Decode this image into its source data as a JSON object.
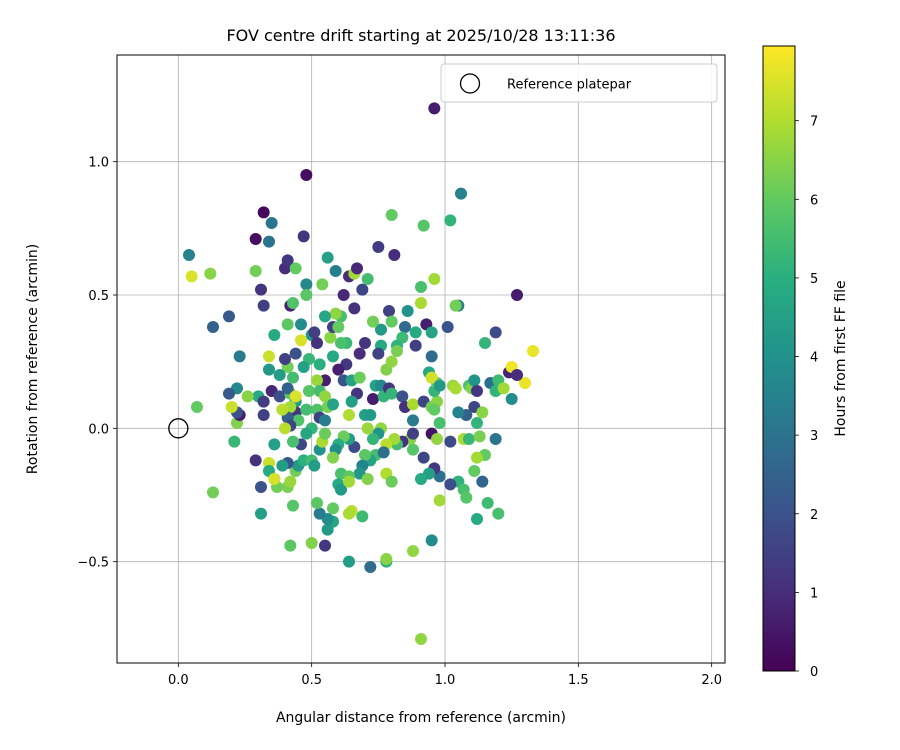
{
  "chart_data": {
    "type": "scatter",
    "title": "FOV centre drift starting at 2025/10/28 13:11:36",
    "xlabel": "Angular distance from reference (arcmin)",
    "ylabel": "Rotation from reference (arcmin)",
    "xlim": [
      -0.23,
      2.05
    ],
    "ylim": [
      -0.88,
      1.4
    ],
    "x_ticks": [
      0.0,
      0.5,
      1.0,
      1.5,
      2.0
    ],
    "x_tick_labels": [
      "0.0",
      "0.5",
      "1.0",
      "1.5",
      "2.0"
    ],
    "y_ticks": [
      -0.5,
      0.0,
      0.5,
      1.0
    ],
    "y_tick_labels": [
      "−0.5",
      "0.0",
      "0.5",
      "1.0"
    ],
    "grid": true,
    "legend": {
      "location": "top-right",
      "entries": [
        {
          "label": "Reference platepar",
          "marker": "open-circle"
        }
      ]
    },
    "reference_point": {
      "x": 0.0,
      "y": 0.0
    },
    "colorbar": {
      "label": "Hours from first FF file",
      "min": 0,
      "max": 7.95,
      "ticks": [
        0,
        1,
        2,
        3,
        4,
        5,
        6,
        7
      ],
      "tick_labels": [
        "0",
        "1",
        "2",
        "3",
        "4",
        "5",
        "6",
        "7"
      ],
      "colormap": "viridis"
    },
    "points": [
      [
        0.48,
        0.95,
        0.3
      ],
      [
        0.96,
        1.2,
        0.6
      ],
      [
        0.32,
        0.81,
        0.2
      ],
      [
        0.29,
        0.71,
        0.3
      ],
      [
        0.47,
        0.72,
        1.2
      ],
      [
        0.34,
        0.7,
        3.0
      ],
      [
        0.35,
        0.77,
        3.1
      ],
      [
        0.4,
        0.6,
        1.0
      ],
      [
        0.41,
        0.63,
        1.3
      ],
      [
        0.31,
        0.52,
        1.2
      ],
      [
        0.32,
        0.46,
        1.5
      ],
      [
        0.19,
        0.42,
        2.2
      ],
      [
        0.13,
        0.38,
        2.5
      ],
      [
        0.04,
        0.65,
        3.5
      ],
      [
        0.05,
        0.57,
        7.5
      ],
      [
        0.12,
        0.58,
        6.5
      ],
      [
        0.29,
        0.59,
        6.2
      ],
      [
        0.44,
        0.6,
        6.0
      ],
      [
        0.42,
        0.46,
        0.8
      ],
      [
        0.46,
        0.39,
        3.8
      ],
      [
        0.43,
        0.47,
        5.7
      ],
      [
        0.36,
        0.35,
        4.8
      ],
      [
        0.41,
        0.39,
        5.9
      ],
      [
        0.5,
        0.35,
        4.3
      ],
      [
        0.57,
        0.34,
        6.5
      ],
      [
        0.58,
        0.38,
        1.5
      ],
      [
        0.61,
        0.42,
        5.6
      ],
      [
        0.62,
        0.5,
        0.9
      ],
      [
        0.64,
        0.57,
        1.0
      ],
      [
        0.66,
        0.58,
        6.8
      ],
      [
        0.67,
        0.6,
        0.9
      ],
      [
        0.69,
        0.52,
        1.7
      ],
      [
        0.71,
        0.56,
        5.5
      ],
      [
        0.66,
        0.45,
        1.1
      ],
      [
        0.63,
        0.32,
        5.3
      ],
      [
        0.6,
        0.38,
        6.0
      ],
      [
        0.59,
        0.43,
        6.6
      ],
      [
        0.55,
        0.42,
        4.7
      ],
      [
        0.48,
        0.54,
        3.7
      ],
      [
        0.48,
        0.5,
        5.9
      ],
      [
        0.54,
        0.54,
        6.2
      ],
      [
        0.59,
        0.59,
        3.4
      ],
      [
        0.56,
        0.64,
        4.5
      ],
      [
        0.75,
        0.68,
        1.4
      ],
      [
        0.81,
        0.65,
        1.0
      ],
      [
        0.8,
        0.8,
        6.0
      ],
      [
        0.92,
        0.76,
        5.8
      ],
      [
        1.02,
        0.78,
        5.2
      ],
      [
        1.06,
        0.88,
        3.5
      ],
      [
        0.91,
        0.53,
        5.6
      ],
      [
        0.96,
        0.56,
        6.8
      ],
      [
        0.91,
        0.47,
        6.9
      ],
      [
        1.05,
        0.46,
        3.3
      ],
      [
        1.04,
        0.46,
        6.2
      ],
      [
        1.27,
        0.5,
        0.6
      ],
      [
        0.79,
        0.44,
        1.5
      ],
      [
        0.8,
        0.4,
        6.0
      ],
      [
        0.86,
        0.44,
        4.0
      ],
      [
        0.85,
        0.38,
        2.8
      ],
      [
        0.84,
        0.34,
        5.4
      ],
      [
        0.89,
        0.36,
        4.8
      ],
      [
        0.93,
        0.39,
        0.7
      ],
      [
        0.95,
        0.36,
        4.6
      ],
      [
        1.01,
        0.38,
        2.0
      ],
      [
        1.19,
        0.36,
        1.8
      ],
      [
        1.15,
        0.32,
        5.2
      ],
      [
        0.95,
        0.27,
        2.8
      ],
      [
        0.89,
        0.31,
        1.5
      ],
      [
        0.82,
        0.31,
        5.1
      ],
      [
        0.76,
        0.31,
        4.8
      ],
      [
        0.75,
        0.28,
        1.6
      ],
      [
        0.76,
        0.37,
        4.3
      ],
      [
        0.73,
        0.4,
        6.2
      ],
      [
        0.7,
        0.32,
        1.2
      ],
      [
        0.68,
        0.28,
        1.0
      ],
      [
        0.63,
        0.24,
        1.3
      ],
      [
        0.61,
        0.32,
        5.6
      ],
      [
        0.6,
        0.22,
        0.7
      ],
      [
        0.58,
        0.27,
        4.8
      ],
      [
        0.55,
        0.18,
        0.7
      ],
      [
        0.53,
        0.24,
        5.0
      ],
      [
        0.52,
        0.32,
        1.1
      ],
      [
        0.51,
        0.36,
        1.5
      ],
      [
        0.49,
        0.26,
        5.3
      ],
      [
        0.47,
        0.23,
        4.5
      ],
      [
        0.46,
        0.33,
        7.5
      ],
      [
        0.44,
        0.28,
        2.0
      ],
      [
        0.41,
        0.23,
        6.2
      ],
      [
        0.4,
        0.26,
        1.5
      ],
      [
        0.34,
        0.27,
        7.3
      ],
      [
        0.34,
        0.22,
        4.2
      ],
      [
        0.38,
        0.2,
        4.4
      ],
      [
        0.43,
        0.19,
        5.5
      ],
      [
        0.35,
        0.14,
        0.9
      ],
      [
        0.3,
        0.12,
        4.8
      ],
      [
        0.32,
        0.1,
        1.4
      ],
      [
        0.38,
        0.12,
        1.9
      ],
      [
        0.42,
        0.13,
        5.9
      ],
      [
        0.41,
        0.15,
        2.5
      ],
      [
        0.44,
        0.1,
        4.4
      ],
      [
        0.44,
        0.06,
        1.2
      ],
      [
        0.48,
        0.07,
        5.5
      ],
      [
        0.45,
        0.03,
        5.7
      ],
      [
        0.42,
        0.08,
        6.8
      ],
      [
        0.41,
        0.04,
        2.4
      ],
      [
        0.42,
        0.01,
        1.7
      ],
      [
        0.44,
        0.12,
        7.5
      ],
      [
        0.49,
        0.14,
        5.8
      ],
      [
        0.52,
        0.18,
        6.7
      ],
      [
        0.53,
        0.14,
        5.5
      ],
      [
        0.55,
        0.12,
        6.6
      ],
      [
        0.56,
        0.08,
        6.3
      ],
      [
        0.52,
        0.07,
        5.7
      ],
      [
        0.53,
        0.04,
        1.5
      ],
      [
        0.55,
        0.03,
        3.4
      ],
      [
        0.58,
        0.09,
        4.6
      ],
      [
        0.62,
        0.18,
        2.1
      ],
      [
        0.65,
        0.18,
        4.6
      ],
      [
        0.68,
        0.19,
        6.1
      ],
      [
        0.67,
        0.13,
        1.2
      ],
      [
        0.65,
        0.1,
        4.5
      ],
      [
        0.64,
        0.05,
        7.0
      ],
      [
        0.7,
        0.05,
        4.5
      ],
      [
        0.71,
        0.0,
        6.7
      ],
      [
        0.73,
        0.11,
        0.6
      ],
      [
        0.74,
        0.16,
        4.6
      ],
      [
        0.76,
        0.16,
        3.7
      ],
      [
        0.77,
        0.12,
        5.2
      ],
      [
        0.78,
        0.22,
        6.4
      ],
      [
        0.8,
        0.25,
        6.6
      ],
      [
        0.82,
        0.29,
        6.3
      ],
      [
        0.79,
        0.15,
        1.2
      ],
      [
        0.8,
        0.13,
        5.2
      ],
      [
        0.84,
        0.12,
        2.0
      ],
      [
        0.85,
        0.08,
        1.1
      ],
      [
        0.88,
        0.09,
        6.9
      ],
      [
        0.92,
        0.1,
        1.6
      ],
      [
        0.95,
        0.08,
        6.2
      ],
      [
        0.97,
        0.1,
        6.5
      ],
      [
        0.96,
        0.14,
        5.2
      ],
      [
        0.97,
        0.17,
        5.9
      ],
      [
        0.94,
        0.21,
        4.7
      ],
      [
        0.95,
        0.19,
        7.4
      ],
      [
        0.98,
        0.16,
        4.3
      ],
      [
        1.03,
        0.16,
        6.7
      ],
      [
        1.04,
        0.15,
        6.9
      ],
      [
        1.09,
        0.16,
        5.7
      ],
      [
        1.1,
        0.15,
        6.4
      ],
      [
        1.11,
        0.18,
        4.1
      ],
      [
        1.12,
        0.14,
        1.3
      ],
      [
        1.17,
        0.17,
        2.9
      ],
      [
        1.2,
        0.18,
        5.4
      ],
      [
        1.19,
        0.14,
        5.2
      ],
      [
        1.22,
        0.15,
        6.8
      ],
      [
        1.24,
        0.21,
        0.8
      ],
      [
        1.25,
        0.23,
        7.8
      ],
      [
        1.3,
        0.17,
        7.7
      ],
      [
        1.33,
        0.29,
        7.7
      ],
      [
        1.25,
        0.11,
        3.8
      ],
      [
        1.11,
        0.08,
        1.7
      ],
      [
        1.14,
        0.06,
        6.5
      ],
      [
        1.12,
        0.02,
        5.2
      ],
      [
        1.08,
        0.05,
        2.5
      ],
      [
        1.05,
        0.06,
        3.5
      ],
      [
        0.98,
        0.02,
        5.6
      ],
      [
        0.96,
        0.07,
        6.0
      ],
      [
        0.95,
        -0.02,
        0.4
      ],
      [
        0.97,
        -0.04,
        6.6
      ],
      [
        1.02,
        -0.05,
        1.8
      ],
      [
        1.07,
        -0.04,
        6.9
      ],
      [
        1.09,
        -0.04,
        5.3
      ],
      [
        1.13,
        -0.03,
        6.3
      ],
      [
        1.19,
        -0.04,
        3.1
      ],
      [
        1.15,
        -0.1,
        6.0
      ],
      [
        1.12,
        -0.11,
        6.8
      ],
      [
        1.11,
        -0.16,
        6.0
      ],
      [
        1.14,
        -0.2,
        2.6
      ],
      [
        1.05,
        -0.2,
        5.1
      ],
      [
        1.07,
        -0.23,
        5.6
      ],
      [
        1.02,
        -0.21,
        1.9
      ],
      [
        0.98,
        -0.18,
        2.9
      ],
      [
        0.96,
        -0.15,
        1.3
      ],
      [
        0.94,
        -0.17,
        4.5
      ],
      [
        0.92,
        -0.11,
        1.7
      ],
      [
        0.91,
        -0.19,
        4.8
      ],
      [
        0.88,
        -0.08,
        5.8
      ],
      [
        0.87,
        -0.04,
        6.4
      ],
      [
        0.88,
        -0.02,
        1.5
      ],
      [
        0.88,
        0.03,
        3.3
      ],
      [
        0.84,
        -0.05,
        1.2
      ],
      [
        0.82,
        -0.06,
        5.5
      ],
      [
        0.81,
        -0.04,
        6.8
      ],
      [
        0.78,
        -0.06,
        7.1
      ],
      [
        0.76,
        0.0,
        6.6
      ],
      [
        0.75,
        -0.02,
        4.1
      ],
      [
        0.72,
        0.05,
        4.3
      ],
      [
        0.73,
        -0.04,
        5.2
      ],
      [
        0.74,
        -0.1,
        5.5
      ],
      [
        0.72,
        -0.12,
        4.6
      ],
      [
        0.7,
        -0.1,
        5.9
      ],
      [
        0.69,
        -0.14,
        3.6
      ],
      [
        0.68,
        -0.17,
        4.2
      ],
      [
        0.71,
        -0.19,
        6.4
      ],
      [
        0.77,
        -0.09,
        2.9
      ],
      [
        0.78,
        -0.17,
        7.0
      ],
      [
        0.8,
        -0.2,
        6.1
      ],
      [
        0.66,
        -0.07,
        1.8
      ],
      [
        0.64,
        -0.04,
        4.4
      ],
      [
        0.62,
        -0.03,
        6.1
      ],
      [
        0.6,
        -0.06,
        4.9
      ],
      [
        0.59,
        -0.08,
        3.9
      ],
      [
        0.58,
        -0.11,
        6.4
      ],
      [
        0.61,
        -0.17,
        5.6
      ],
      [
        0.6,
        -0.21,
        4.8
      ],
      [
        0.61,
        -0.23,
        4.3
      ],
      [
        0.64,
        -0.18,
        5.9
      ],
      [
        0.64,
        -0.2,
        6.8
      ],
      [
        0.58,
        -0.3,
        6.0
      ],
      [
        0.58,
        -0.35,
        4.7
      ],
      [
        0.56,
        -0.38,
        4.3
      ],
      [
        0.56,
        -0.34,
        3.8
      ],
      [
        0.55,
        -0.44,
        1.3
      ],
      [
        0.5,
        -0.43,
        6.4
      ],
      [
        0.42,
        -0.44,
        5.9
      ],
      [
        0.43,
        -0.29,
        5.8
      ],
      [
        0.41,
        -0.22,
        6.3
      ],
      [
        0.42,
        -0.2,
        6.7
      ],
      [
        0.44,
        -0.16,
        6.2
      ],
      [
        0.45,
        -0.14,
        4.3
      ],
      [
        0.47,
        -0.12,
        5.0
      ],
      [
        0.5,
        -0.12,
        5.5
      ],
      [
        0.51,
        -0.14,
        4.4
      ],
      [
        0.53,
        -0.08,
        4.0
      ],
      [
        0.54,
        -0.05,
        6.9
      ],
      [
        0.55,
        -0.02,
        6.1
      ],
      [
        0.5,
        0.0,
        5.2
      ],
      [
        0.48,
        -0.02,
        4.7
      ],
      [
        0.46,
        -0.06,
        1.7
      ],
      [
        0.43,
        -0.05,
        5.6
      ],
      [
        0.41,
        -0.13,
        2.1
      ],
      [
        0.39,
        -0.14,
        4.4
      ],
      [
        0.36,
        -0.06,
        4.5
      ],
      [
        0.34,
        -0.13,
        7.3
      ],
      [
        0.34,
        -0.16,
        4.8
      ],
      [
        0.36,
        -0.19,
        5.8
      ],
      [
        0.37,
        -0.22,
        6.2
      ],
      [
        0.36,
        -0.19,
        7.5
      ],
      [
        0.31,
        -0.22,
        2.0
      ],
      [
        0.29,
        -0.12,
        1.1
      ],
      [
        0.31,
        -0.32,
        4.5
      ],
      [
        0.21,
        -0.05,
        5.3
      ],
      [
        0.22,
        0.02,
        6.4
      ],
      [
        0.23,
        0.05,
        0.7
      ],
      [
        0.22,
        0.06,
        2.0
      ],
      [
        0.2,
        0.08,
        7.3
      ],
      [
        0.26,
        0.12,
        6.5
      ],
      [
        0.22,
        0.15,
        3.7
      ],
      [
        0.19,
        0.13,
        2.2
      ],
      [
        0.23,
        0.27,
        3.3
      ],
      [
        0.32,
        0.05,
        1.5
      ],
      [
        0.39,
        0.07,
        7.1
      ],
      [
        0.4,
        0.0,
        7.1
      ],
      [
        0.07,
        0.08,
        6.0
      ],
      [
        0.13,
        -0.24,
        6.2
      ],
      [
        0.53,
        -0.32,
        3.3
      ],
      [
        0.52,
        -0.28,
        5.9
      ],
      [
        0.65,
        -0.31,
        7.1
      ],
      [
        0.64,
        -0.32,
        6.9
      ],
      [
        0.69,
        -0.33,
        5.4
      ],
      [
        0.64,
        -0.5,
        4.4
      ],
      [
        0.72,
        -0.52,
        2.8
      ],
      [
        0.78,
        -0.5,
        5.1
      ],
      [
        0.78,
        -0.49,
        6.5
      ],
      [
        0.88,
        -0.46,
        6.6
      ],
      [
        0.95,
        -0.42,
        3.8
      ],
      [
        0.91,
        -0.79,
        6.6
      ],
      [
        0.98,
        -0.27,
        6.8
      ],
      [
        1.08,
        -0.26,
        5.8
      ],
      [
        1.12,
        -0.34,
        4.8
      ],
      [
        1.16,
        -0.28,
        5.4
      ],
      [
        1.2,
        -0.32,
        5.6
      ],
      [
        1.27,
        0.2,
        1.0
      ]
    ]
  }
}
